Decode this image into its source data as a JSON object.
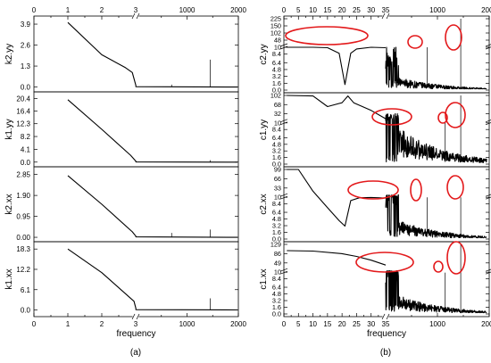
{
  "figure": {
    "panel_a_label": "(a)",
    "panel_b_label": "(b)",
    "xlabel": "frequency",
    "x_ticks_left": [
      "0",
      "1",
      "2",
      "3"
    ],
    "x_ticks_right": [
      "1000",
      "2000"
    ],
    "x_break_label": "3",
    "b_x_ticks_left": [
      "0",
      "5",
      "10",
      "15",
      "20",
      "25",
      "30",
      "35"
    ],
    "b_x_ticks_right": [
      "1000",
      "2000"
    ],
    "b_x_break_label": "35",
    "b_top_ticks_right": [
      "1000",
      "2000"
    ]
  },
  "chart_data": [
    {
      "panel": "a",
      "type": "line",
      "ylabel": "k2.yy",
      "y_ticks": [
        "0.0",
        "1.3",
        "2.6",
        "3.9"
      ],
      "ylim": [
        -0.3,
        4.4
      ],
      "series": [
        {
          "points": [
            [
              1,
              4.0
            ],
            [
              2,
              2.0
            ],
            [
              2.7,
              1.2
            ],
            [
              2.9,
              0.9
            ],
            [
              3.05,
              0.1
            ],
            [
              3.15,
              0.02
            ]
          ]
        }
      ],
      "spikes": [
        {
          "x": 700,
          "y": 0.15
        },
        {
          "x": 1450,
          "y": 1.7
        }
      ]
    },
    {
      "panel": "a",
      "type": "line",
      "ylabel": "k1.yy",
      "y_ticks": [
        "0.0",
        "4.1",
        "8.2",
        "12.3",
        "16.4",
        "20.4"
      ],
      "ylim": [
        -1.5,
        22.5
      ],
      "series": [
        {
          "points": [
            [
              1,
              20.0
            ],
            [
              2,
              10.5
            ],
            [
              2.85,
              2.2
            ],
            [
              3.05,
              0.3
            ],
            [
              3.15,
              0.05
            ]
          ]
        }
      ],
      "spikes": [
        {
          "x": 1450,
          "y": 0.6
        }
      ]
    },
    {
      "panel": "a",
      "type": "line",
      "ylabel": "k2.xx",
      "y_ticks": [
        "0.00",
        "0.95",
        "1.90",
        "2.85"
      ],
      "ylim": [
        -0.2,
        3.2
      ],
      "series": [
        {
          "points": [
            [
              1,
              2.8
            ],
            [
              2,
              1.5
            ],
            [
              2.9,
              0.25
            ],
            [
              3.05,
              0.05
            ],
            [
              3.15,
              0.02
            ]
          ]
        }
      ],
      "spikes": [
        {
          "x": 700,
          "y": 0.2
        },
        {
          "x": 1450,
          "y": 0.35
        }
      ]
    },
    {
      "panel": "a",
      "type": "line",
      "ylabel": "k1.xx",
      "y_ticks": [
        "0.0",
        "6.1",
        "12.2",
        "18.3"
      ],
      "ylim": [
        -2.0,
        20.5
      ],
      "series": [
        {
          "points": [
            [
              1,
              18.3
            ],
            [
              2,
              11.2
            ],
            [
              2.95,
              2.6
            ],
            [
              3.05,
              0.5
            ],
            [
              3.15,
              0.1
            ]
          ]
        }
      ],
      "spikes": [
        {
          "x": 1450,
          "y": 3.5
        }
      ]
    },
    {
      "panel": "b",
      "type": "line",
      "ylabel": "c2.yy",
      "y_ticks": [
        "0.0",
        "1.6",
        "3.2",
        "4.8",
        "6.4",
        "8.4",
        "10",
        "48",
        "102",
        "150",
        "225"
      ],
      "tick_levels": [
        0.0,
        1.6,
        3.2,
        4.8,
        6.4,
        8.4,
        10,
        48,
        102,
        150,
        225
      ],
      "series": [
        {
          "points": [
            [
              1,
              10.1
            ],
            [
              10,
              10.2
            ],
            [
              15,
              9.9
            ],
            [
              19,
              8.6
            ],
            [
              21,
              1.3
            ],
            [
              23,
              8.6
            ],
            [
              25,
              9.6
            ],
            [
              30,
              10.1
            ],
            [
              35,
              9.9
            ]
          ]
        }
      ]
    },
    {
      "panel": "b",
      "type": "line",
      "ylabel": "c1.yy",
      "y_ticks": [
        "0.0",
        "1.6",
        "3.2",
        "4.8",
        "6.4",
        "8.4",
        "10",
        "32",
        "68",
        "102"
      ],
      "tick_levels": [
        0.0,
        1.6,
        3.2,
        4.8,
        6.4,
        8.4,
        10,
        32,
        68,
        102
      ],
      "series": [
        {
          "points": [
            [
              1,
              102
            ],
            [
              10,
              100
            ],
            [
              15,
              60
            ],
            [
              20,
              75
            ],
            [
              22,
              100
            ],
            [
              24,
              75
            ],
            [
              30,
              45
            ],
            [
              35,
              20
            ]
          ]
        }
      ]
    },
    {
      "panel": "b",
      "type": "line",
      "ylabel": "c2.xx",
      "y_ticks": [
        "0.0",
        "1.6",
        "3.2",
        "4.8",
        "6.4",
        "8.4",
        "10",
        "33",
        "66",
        "99"
      ],
      "tick_levels": [
        0.0,
        1.6,
        3.2,
        4.8,
        6.4,
        8.4,
        10,
        33,
        66,
        99
      ],
      "series": [
        {
          "points": [
            [
              1,
              99
            ],
            [
              5,
              99
            ],
            [
              10,
              25
            ],
            [
              15,
              7.5
            ],
            [
              19,
              4.4
            ],
            [
              21,
              3.1
            ],
            [
              23,
              9.2
            ],
            [
              26,
              9.9
            ],
            [
              30,
              9.95
            ],
            [
              35,
              9.8
            ]
          ]
        }
      ]
    },
    {
      "panel": "b",
      "type": "line",
      "ylabel": "c1.xx",
      "y_ticks": [
        "0.0",
        "1.6",
        "3.2",
        "4.8",
        "6.4",
        "8.4",
        "10",
        "49",
        "86",
        "129"
      ],
      "tick_levels": [
        0.0,
        1.6,
        3.2,
        4.8,
        6.4,
        8.4,
        10,
        49,
        86,
        129
      ],
      "series": [
        {
          "points": [
            [
              1,
              100
            ],
            [
              10,
              98
            ],
            [
              20,
              86
            ],
            [
              25,
              75
            ],
            [
              30,
              60
            ],
            [
              35,
              40
            ]
          ]
        }
      ]
    }
  ]
}
